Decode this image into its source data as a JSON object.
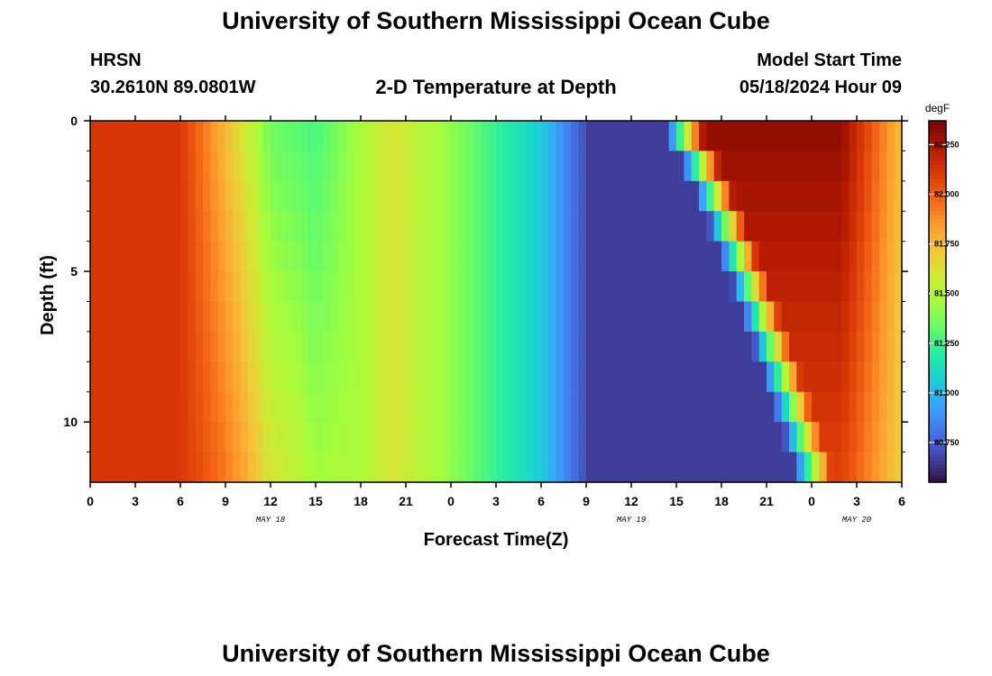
{
  "header": {
    "title": "University of Southern Mississippi Ocean Cube",
    "station_name": "HRSN",
    "station_coords": "30.2610N  89.0801W",
    "subtitle": "2-D Temperature at Depth",
    "model_start_label": "Model Start Time",
    "model_start_value": "05/18/2024 Hour 09"
  },
  "footer": {
    "title": "University of Southern Mississippi Ocean Cube"
  },
  "chart_data": {
    "type": "heatmap",
    "title": "2-D Temperature at Depth",
    "xlabel": "Forecast Time(Z)",
    "ylabel": "Depth (ft)",
    "x_hours_range": [
      0,
      54
    ],
    "y_depth_range_ft": [
      0,
      12
    ],
    "x_tick_hours": [
      0,
      3,
      6,
      9,
      12,
      15,
      18,
      21,
      24,
      27,
      30,
      33,
      36,
      39,
      42,
      45,
      48,
      51,
      54
    ],
    "x_tick_labels": [
      "0",
      "3",
      "6",
      "9",
      "12",
      "15",
      "18",
      "21",
      "0",
      "3",
      "6",
      "9",
      "12",
      "15",
      "18",
      "21",
      "0",
      "3",
      "6"
    ],
    "date_labels": [
      {
        "text": "MAY 18",
        "hour": 12
      },
      {
        "text": "MAY 19",
        "hour": 36
      },
      {
        "text": "MAY 20",
        "hour": 51
      }
    ],
    "y_tick_depths": [
      0,
      5,
      10
    ],
    "y_tick_labels": [
      "0",
      "5",
      "10"
    ],
    "y_minor_depths": [
      1,
      2,
      3,
      4,
      6,
      7,
      8,
      9,
      11
    ],
    "colorbar": {
      "unit": "degF",
      "range": [
        80.55,
        82.37
      ],
      "ticks": [
        80.75,
        81.0,
        81.25,
        81.5,
        81.75,
        82.0,
        82.25
      ],
      "tick_labels": [
        "80.750",
        "81.000",
        "81.250",
        "81.500",
        "81.750",
        "82.000",
        "82.250"
      ],
      "colormap": [
        "#30123b",
        "#4145ab",
        "#4675ed",
        "#39a2fc",
        "#1bcfd4",
        "#24eca6",
        "#61fc6c",
        "#a4fc3b",
        "#d1e834",
        "#f3c63a",
        "#fe9b2d",
        "#f36315",
        "#d93806",
        "#b11901",
        "#7a0402"
      ]
    },
    "grid": false
  }
}
